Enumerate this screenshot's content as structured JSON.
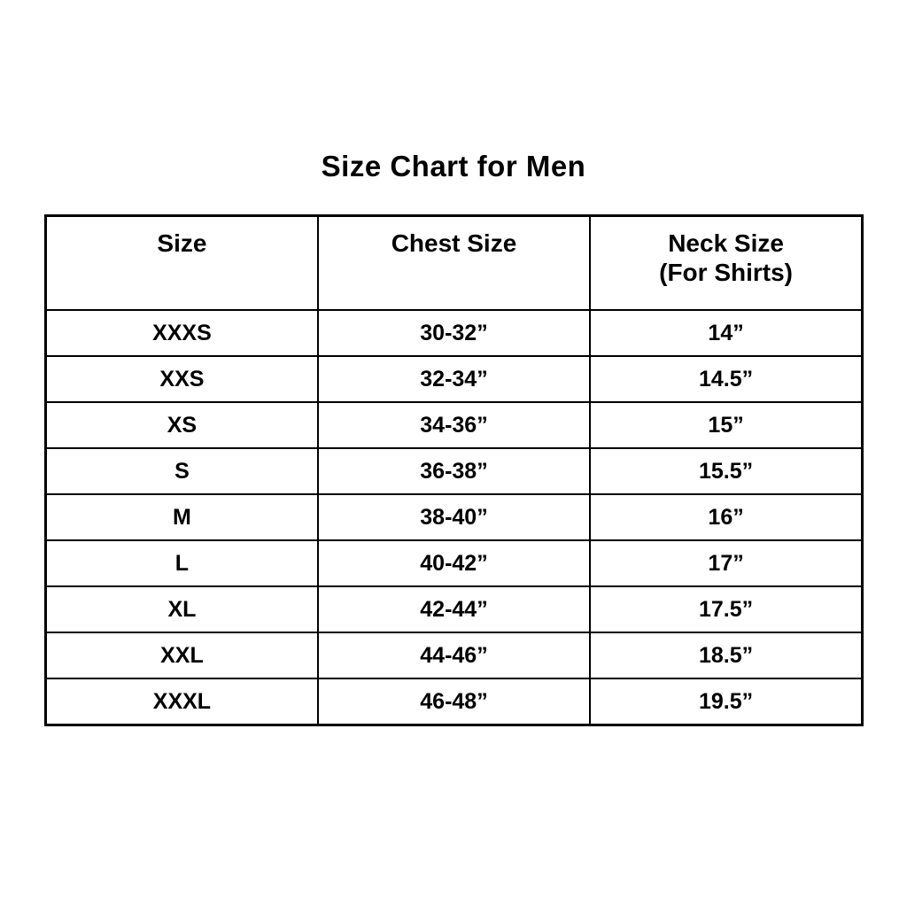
{
  "page": {
    "background_color": "#ffffff",
    "text_color": "#000000",
    "border_color": "#000000"
  },
  "chart_data": {
    "type": "table",
    "title": "Size Chart for Men",
    "columns": [
      "Size",
      "Chest Size",
      "Neck Size\n(For Shirts)"
    ],
    "rows": [
      [
        "XXXS",
        "30-32”",
        "14”"
      ],
      [
        "XXS",
        "32-34”",
        "14.5”"
      ],
      [
        "XS",
        "34-36”",
        "15”"
      ],
      [
        "S",
        "36-38”",
        "15.5”"
      ],
      [
        "M",
        "38-40”",
        "16”"
      ],
      [
        "L",
        "40-42”",
        "17”"
      ],
      [
        "XL",
        "42-44”",
        "17.5”"
      ],
      [
        "XXL",
        "44-46”",
        "18.5”"
      ],
      [
        "XXXL",
        "46-48”",
        "19.5”"
      ]
    ],
    "layout": {
      "grid": "full-borders",
      "column_alignment": [
        "center",
        "center",
        "center"
      ],
      "header_style": "bold",
      "body_style": "bold"
    }
  }
}
